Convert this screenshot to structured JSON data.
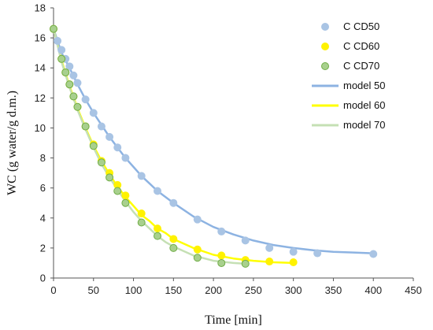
{
  "chart_data": {
    "type": "scatter",
    "xlabel": "Time [min]",
    "ylabel": "WC (g water/g d.m.)",
    "xlim": [
      0,
      450
    ],
    "ylim": [
      0,
      18
    ],
    "xticks": [
      0,
      50,
      100,
      150,
      200,
      250,
      300,
      350,
      400,
      450
    ],
    "yticks": [
      0,
      2,
      4,
      6,
      8,
      10,
      12,
      14,
      16,
      18
    ],
    "grid": false,
    "legend_position": "top-right",
    "series": [
      {
        "name": "C CD50",
        "kind": "points",
        "color": "#A9C4E4",
        "edge": "#A9C4E4",
        "x": [
          0,
          5,
          10,
          15,
          20,
          25,
          30,
          40,
          50,
          60,
          70,
          80,
          90,
          110,
          130,
          150,
          180,
          210,
          240,
          270,
          300,
          330,
          400
        ],
        "y": [
          16.6,
          15.8,
          15.2,
          14.6,
          14.1,
          13.5,
          13.0,
          11.9,
          11.0,
          10.1,
          9.4,
          8.7,
          8.0,
          6.8,
          5.8,
          5.0,
          3.9,
          3.1,
          2.5,
          2.0,
          1.75,
          1.65,
          1.6
        ]
      },
      {
        "name": "C CD60",
        "kind": "points",
        "color": "#FFF200",
        "edge": "#FFF200",
        "x": [
          0,
          10,
          15,
          20,
          25,
          30,
          40,
          50,
          60,
          70,
          80,
          90,
          110,
          130,
          150,
          180,
          210,
          240,
          270,
          300
        ],
        "y": [
          16.6,
          14.6,
          13.7,
          12.9,
          12.1,
          11.4,
          10.1,
          8.9,
          7.8,
          7.0,
          6.2,
          5.5,
          4.3,
          3.3,
          2.6,
          1.9,
          1.5,
          1.2,
          1.1,
          1.05
        ]
      },
      {
        "name": "C CD70",
        "kind": "points",
        "color": "#A8D08D",
        "edge": "#70AD47",
        "x": [
          0,
          10,
          15,
          20,
          25,
          30,
          40,
          50,
          60,
          70,
          80,
          90,
          110,
          130,
          150,
          180,
          210,
          240
        ],
        "y": [
          16.6,
          14.6,
          13.7,
          12.9,
          12.1,
          11.4,
          10.1,
          8.8,
          7.7,
          6.7,
          5.8,
          5.0,
          3.7,
          2.8,
          2.0,
          1.35,
          1.0,
          0.95
        ]
      },
      {
        "name": "model 50",
        "kind": "line",
        "color": "#8DB3E2",
        "x": [
          0,
          10,
          20,
          30,
          40,
          50,
          60,
          70,
          80,
          90,
          100,
          110,
          120,
          130,
          140,
          150,
          175,
          200,
          225,
          250,
          275,
          300,
          325,
          350,
          375,
          400
        ],
        "y": [
          16.6,
          15.0,
          14.0,
          12.9,
          11.9,
          11.0,
          10.2,
          9.4,
          8.7,
          8.0,
          7.4,
          6.8,
          6.3,
          5.8,
          5.4,
          5.0,
          4.1,
          3.4,
          2.9,
          2.5,
          2.2,
          2.0,
          1.85,
          1.75,
          1.7,
          1.65
        ]
      },
      {
        "name": "model 60",
        "kind": "line",
        "color": "#FFFF00",
        "x": [
          0,
          10,
          20,
          30,
          40,
          50,
          60,
          70,
          80,
          90,
          100,
          110,
          120,
          130,
          140,
          150,
          175,
          200,
          225,
          250,
          275,
          300
        ],
        "y": [
          16.6,
          14.5,
          12.8,
          11.3,
          10.0,
          8.8,
          7.8,
          6.9,
          6.1,
          5.4,
          4.8,
          4.2,
          3.8,
          3.3,
          3.0,
          2.6,
          2.0,
          1.55,
          1.3,
          1.15,
          1.05,
          1.0
        ]
      },
      {
        "name": "model 70",
        "kind": "line",
        "color": "#C5E0B4",
        "x": [
          0,
          10,
          20,
          30,
          40,
          50,
          60,
          70,
          80,
          90,
          100,
          110,
          120,
          130,
          140,
          150,
          175,
          200,
          225,
          240
        ],
        "y": [
          16.6,
          14.4,
          12.7,
          11.2,
          9.9,
          8.7,
          7.6,
          6.7,
          5.9,
          5.1,
          4.4,
          3.8,
          3.3,
          2.8,
          2.4,
          2.1,
          1.5,
          1.15,
          1.0,
          0.95
        ]
      }
    ]
  }
}
